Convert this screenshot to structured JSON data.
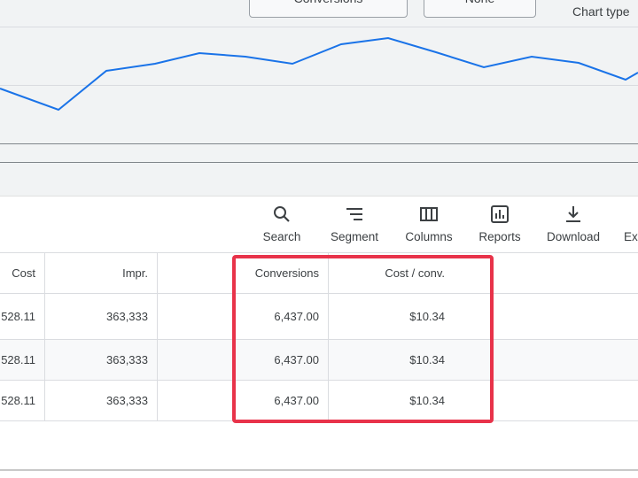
{
  "chart_controls": {
    "metric_button": "Conversions",
    "compare_button": "None",
    "chart_type_label": "Chart type"
  },
  "toolbar": [
    {
      "label": "Search"
    },
    {
      "label": "Segment"
    },
    {
      "label": "Columns"
    },
    {
      "label": "Reports"
    },
    {
      "label": "Download"
    },
    {
      "label": "Ex"
    }
  ],
  "table": {
    "headers": [
      "Cost",
      "Impr.",
      "",
      "Conversions",
      "Cost / conv."
    ],
    "rows": [
      [
        "528.11",
        "363,333",
        "",
        "6,437.00",
        "$10.34"
      ],
      [
        "528.11",
        "363,333",
        "",
        "6,437.00",
        "$10.34"
      ],
      [
        "528.11",
        "363,333",
        "",
        "6,437.00",
        "$10.34"
      ]
    ]
  }
}
